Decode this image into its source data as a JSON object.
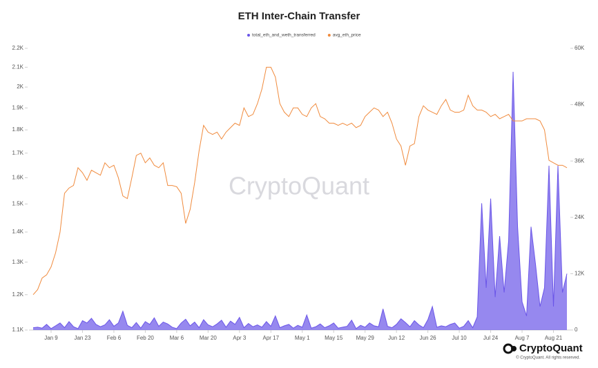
{
  "chart_data": {
    "type": "line",
    "title": "ETH Inter-Chain Transfer",
    "watermark": "CryptoQuant",
    "brand": "CryptoQuant",
    "copyright": "© CryptoQuant. All rights reserved.",
    "categories": [
      null,
      null,
      null,
      null,
      "Jan 9",
      null,
      null,
      null,
      null,
      null,
      null,
      "Jan 23",
      null,
      null,
      null,
      null,
      null,
      null,
      "Feb 6",
      null,
      null,
      null,
      null,
      null,
      null,
      "Feb 20",
      null,
      null,
      null,
      null,
      null,
      null,
      "Mar 6",
      null,
      null,
      null,
      null,
      null,
      null,
      "Mar 20",
      null,
      null,
      null,
      null,
      null,
      null,
      "Apr 3",
      null,
      null,
      null,
      null,
      null,
      null,
      "Apr 17",
      null,
      null,
      null,
      null,
      null,
      null,
      "May 1",
      null,
      null,
      null,
      null,
      null,
      null,
      "May 15",
      null,
      null,
      null,
      null,
      null,
      null,
      "May 29",
      null,
      null,
      null,
      null,
      null,
      null,
      "Jun 12",
      null,
      null,
      null,
      null,
      null,
      null,
      "Jun 26",
      null,
      null,
      null,
      null,
      null,
      null,
      "Jul 10",
      null,
      null,
      null,
      null,
      null,
      null,
      "Jul 24",
      null,
      null,
      null,
      null,
      null,
      null,
      "Aug 7",
      null,
      null,
      null,
      null,
      null,
      null,
      "Aug 21",
      null,
      null,
      null
    ],
    "series": [
      {
        "name": "total_eth_and_weth_transferred",
        "color": "#6a55e8",
        "axis": "y2",
        "area": true,
        "values": [
          500,
          600,
          400,
          1200,
          300,
          900,
          1500,
          500,
          1800,
          700,
          300,
          2000,
          1500,
          2500,
          1200,
          700,
          1100,
          2200,
          800,
          1500,
          4000,
          1000,
          500,
          1600,
          400,
          1800,
          1200,
          2600,
          800,
          1700,
          1300,
          600,
          300,
          1500,
          2300,
          900,
          1700,
          500,
          2200,
          1100,
          700,
          1300,
          2100,
          600,
          1900,
          1200,
          2700,
          500,
          1400,
          700,
          1100,
          600,
          1800,
          800,
          3000,
          500,
          900,
          1200,
          400,
          1000,
          600,
          3200,
          400,
          700,
          1300,
          500,
          900,
          1500,
          400,
          600,
          800,
          2100,
          300,
          1000,
          600,
          1500,
          900,
          700,
          4500,
          800,
          500,
          1200,
          2400,
          1600,
          700,
          2000,
          1100,
          500,
          2200,
          5000,
          600,
          900,
          700,
          1200,
          1500,
          400,
          800,
          2000,
          500,
          2800,
          27000,
          9000,
          28000,
          7000,
          20000,
          8000,
          19000,
          55000,
          22000,
          6000,
          3000,
          22000,
          14000,
          5000,
          9000,
          35000,
          5000,
          35000,
          8000,
          12000
        ]
      },
      {
        "name": "avg_eth_price",
        "color": "#f08a3c",
        "values": [
          1200,
          1215,
          1250,
          1260,
          1285,
          1330,
          1400,
          1540,
          1560,
          1570,
          1640,
          1620,
          1590,
          1630,
          1620,
          1610,
          1660,
          1640,
          1650,
          1600,
          1530,
          1520,
          1600,
          1690,
          1700,
          1660,
          1680,
          1650,
          1640,
          1660,
          1570,
          1570,
          1565,
          1540,
          1430,
          1480,
          1580,
          1710,
          1820,
          1790,
          1780,
          1790,
          1760,
          1790,
          1810,
          1830,
          1820,
          1900,
          1860,
          1870,
          1920,
          1990,
          2100,
          2100,
          2050,
          1920,
          1880,
          1860,
          1900,
          1900,
          1870,
          1860,
          1900,
          1920,
          1860,
          1850,
          1830,
          1830,
          1820,
          1830,
          1820,
          1830,
          1810,
          1820,
          1860,
          1880,
          1900,
          1890,
          1860,
          1880,
          1830,
          1760,
          1730,
          1650,
          1730,
          1740,
          1860,
          1910,
          1890,
          1880,
          1870,
          1910,
          1940,
          1890,
          1880,
          1880,
          1890,
          1960,
          1910,
          1890,
          1890,
          1880,
          1860,
          1870,
          1850,
          1860,
          1870,
          1840,
          1840,
          1840,
          1850,
          1850,
          1850,
          1840,
          1800,
          1670,
          1660,
          1650,
          1650,
          1640
        ]
      }
    ],
    "ylog": true,
    "ylim": [
      1100,
      2200
    ],
    "yticks": [
      {
        "value": 1100,
        "label": "1.1K"
      },
      {
        "value": 1200,
        "label": "1.2K"
      },
      {
        "value": 1300,
        "label": "1.3K"
      },
      {
        "value": 1400,
        "label": "1.4K"
      },
      {
        "value": 1500,
        "label": "1.5K"
      },
      {
        "value": 1600,
        "label": "1.6K"
      },
      {
        "value": 1700,
        "label": "1.7K"
      },
      {
        "value": 1800,
        "label": "1.8K"
      },
      {
        "value": 1900,
        "label": "1.9K"
      },
      {
        "value": 2000,
        "label": "2K"
      },
      {
        "value": 2100,
        "label": "2.1K"
      },
      {
        "value": 2200,
        "label": "2.2K"
      }
    ],
    "y2lim": [
      0,
      60000
    ],
    "y2ticks": [
      0,
      {
        "value": 12000,
        "label": "12K"
      },
      {
        "value": 24000,
        "label": "24K"
      },
      {
        "value": 36000,
        "label": "36K"
      },
      {
        "value": 48000,
        "label": "48K"
      },
      {
        "value": 60000,
        "label": "60K"
      }
    ],
    "grid": false,
    "legend": "top"
  }
}
